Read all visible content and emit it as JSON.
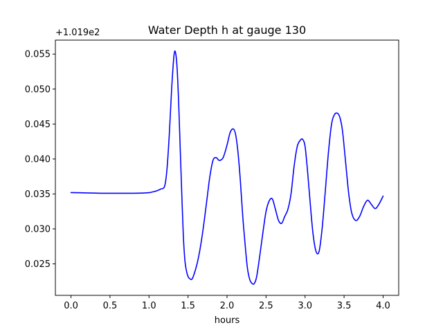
{
  "chart_data": {
    "type": "line",
    "title": "Water Depth h at gauge 130",
    "xlabel": "hours",
    "ylabel": "",
    "y_offset_label": "+1.019e2",
    "xlim": [
      -0.2,
      4.2
    ],
    "ylim": [
      0.0205,
      0.057
    ],
    "x_ticks": [
      0.0,
      0.5,
      1.0,
      1.5,
      2.0,
      2.5,
      3.0,
      3.5,
      4.0
    ],
    "x_tick_labels": [
      "0.0",
      "0.5",
      "1.0",
      "1.5",
      "2.0",
      "2.5",
      "3.0",
      "3.5",
      "4.0"
    ],
    "y_ticks": [
      0.025,
      0.03,
      0.035,
      0.04,
      0.045,
      0.05,
      0.055
    ],
    "y_tick_labels": [
      "0.025",
      "0.030",
      "0.035",
      "0.040",
      "0.045",
      "0.050",
      "0.055"
    ],
    "grid": false,
    "series": [
      {
        "color": "#0000ff",
        "x": [
          0.0,
          0.2,
          0.4,
          0.6,
          0.8,
          0.9,
          1.0,
          1.05,
          1.1,
          1.15,
          1.2,
          1.23,
          1.26,
          1.29,
          1.32,
          1.34,
          1.36,
          1.38,
          1.4,
          1.42,
          1.44,
          1.46,
          1.48,
          1.5,
          1.52,
          1.55,
          1.58,
          1.62,
          1.66,
          1.7,
          1.74,
          1.78,
          1.82,
          1.86,
          1.9,
          1.95,
          2.0,
          2.04,
          2.08,
          2.11,
          2.14,
          2.17,
          2.2,
          2.23,
          2.26,
          2.29,
          2.32,
          2.35,
          2.38,
          2.42,
          2.46,
          2.5,
          2.54,
          2.58,
          2.62,
          2.66,
          2.7,
          2.74,
          2.78,
          2.82,
          2.86,
          2.9,
          2.94,
          2.97,
          3.0,
          3.03,
          3.06,
          3.1,
          3.14,
          3.18,
          3.22,
          3.26,
          3.3,
          3.34,
          3.38,
          3.42,
          3.45,
          3.48,
          3.52,
          3.56,
          3.6,
          3.65,
          3.7,
          3.75,
          3.8,
          3.85,
          3.9,
          3.95,
          4.0
        ],
        "y": [
          0.0352,
          0.03515,
          0.0351,
          0.0351,
          0.0351,
          0.03512,
          0.03518,
          0.0353,
          0.03545,
          0.0357,
          0.0361,
          0.0385,
          0.0435,
          0.05,
          0.0548,
          0.0552,
          0.053,
          0.048,
          0.0415,
          0.035,
          0.029,
          0.0255,
          0.024,
          0.0232,
          0.0229,
          0.0228,
          0.0236,
          0.0252,
          0.0275,
          0.0305,
          0.034,
          0.0375,
          0.0398,
          0.0402,
          0.0398,
          0.0402,
          0.042,
          0.0438,
          0.0443,
          0.0435,
          0.041,
          0.037,
          0.032,
          0.028,
          0.0245,
          0.0228,
          0.0222,
          0.0222,
          0.0232,
          0.0262,
          0.0295,
          0.0325,
          0.034,
          0.0343,
          0.0328,
          0.0312,
          0.0308,
          0.0318,
          0.0328,
          0.035,
          0.039,
          0.0418,
          0.0427,
          0.0428,
          0.0418,
          0.0385,
          0.0345,
          0.0295,
          0.0268,
          0.0268,
          0.0302,
          0.0355,
          0.041,
          0.045,
          0.0464,
          0.0465,
          0.0458,
          0.044,
          0.0395,
          0.035,
          0.0322,
          0.0312,
          0.0318,
          0.0332,
          0.0341,
          0.0335,
          0.0329,
          0.0336,
          0.0347
        ]
      }
    ]
  }
}
